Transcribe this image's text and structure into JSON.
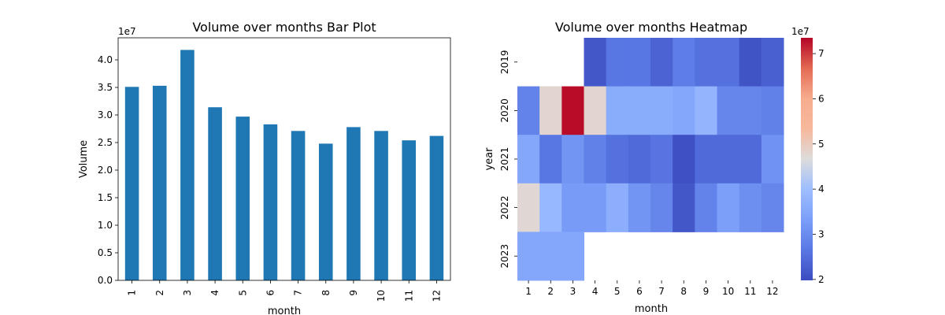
{
  "chart_data": [
    {
      "type": "bar",
      "title": "Volume over months Bar Plot",
      "xlabel": "month",
      "ylabel": "Volume",
      "offset_label": "1e7",
      "categories": [
        "1",
        "2",
        "3",
        "4",
        "5",
        "6",
        "7",
        "8",
        "9",
        "10",
        "11",
        "12"
      ],
      "values": [
        35100000,
        35300000,
        41800000,
        31400000,
        29700000,
        28300000,
        27100000,
        24800000,
        27800000,
        27100000,
        25400000,
        26200000
      ],
      "ylim": [
        0,
        44000000
      ],
      "yticks": [
        0,
        5000000,
        10000000,
        15000000,
        20000000,
        25000000,
        30000000,
        35000000,
        40000000
      ],
      "ytick_labels": [
        "0.0",
        "0.5",
        "1.0",
        "1.5",
        "2.0",
        "2.5",
        "3.0",
        "3.5",
        "4.0"
      ],
      "color": "#1f77b4",
      "grid": false,
      "legend": "none"
    },
    {
      "type": "heatmap",
      "title": "Volume over months Heatmap",
      "xlabel": "month",
      "ylabel": "year",
      "x_categories": [
        "1",
        "2",
        "3",
        "4",
        "5",
        "6",
        "7",
        "8",
        "9",
        "10",
        "11",
        "12"
      ],
      "y_categories": [
        "2019",
        "2020",
        "2021",
        "2022",
        "2023"
      ],
      "values": [
        [
          null,
          null,
          null,
          21500000,
          26500000,
          26500000,
          23500000,
          27500000,
          25500000,
          25500000,
          21000000,
          23000000
        ],
        [
          28500000,
          48000000,
          73000000,
          48000000,
          36000000,
          36000000,
          36000000,
          35000000,
          38000000,
          29000000,
          29000000,
          28000000
        ],
        [
          35000000,
          26500000,
          31500000,
          28000000,
          25500000,
          24500000,
          26000000,
          20500000,
          24500000,
          24500000,
          24500000,
          31000000
        ],
        [
          47500000,
          38500000,
          32500000,
          32500000,
          36500000,
          31500000,
          29000000,
          21500000,
          28500000,
          33500000,
          30500000,
          29000000
        ],
        [
          35000000,
          35000000,
          35000000,
          null,
          null,
          null,
          null,
          null,
          null,
          null,
          null,
          null
        ]
      ],
      "colormap": "coolwarm",
      "vmin": 19800000,
      "vmax": 73500000,
      "colorbar_offset_label": "1e7",
      "colorbar_ticks": [
        20000000,
        30000000,
        40000000,
        50000000,
        60000000,
        70000000
      ],
      "colorbar_tick_labels": [
        "2",
        "3",
        "4",
        "5",
        "6",
        "7"
      ]
    }
  ]
}
